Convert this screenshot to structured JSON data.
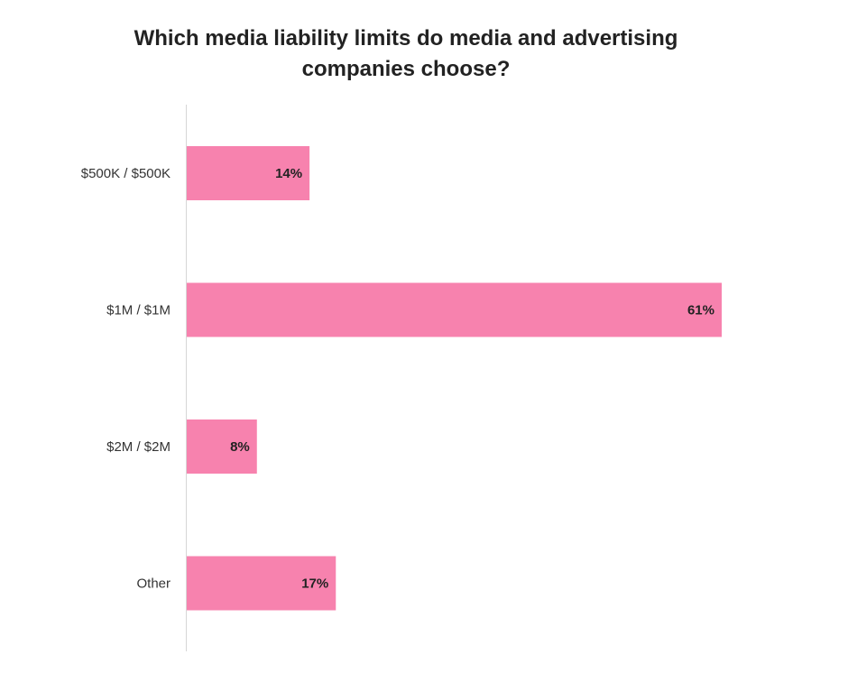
{
  "chart_data": {
    "type": "bar",
    "orientation": "horizontal",
    "title": "Which media liability limits do media and advertising companies choose?",
    "categories": [
      "$500K / $500K",
      "$1M / $1M",
      "$2M / $2M",
      "Other"
    ],
    "values": [
      14,
      61,
      8,
      17
    ],
    "value_labels": [
      "14%",
      "61%",
      "8%",
      "17%"
    ],
    "xlabel": "",
    "ylabel": "",
    "xlim": [
      0,
      61
    ],
    "grid": false,
    "legend": "none",
    "bar_color": "#f782ae"
  }
}
